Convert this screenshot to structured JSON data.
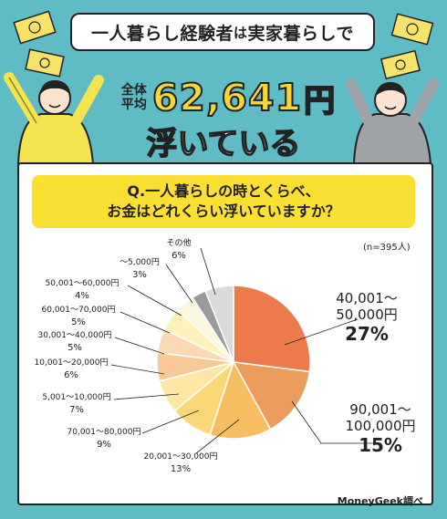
{
  "header": {
    "title_main": "一人暮らし経験者",
    "title_wa": "は",
    "title_rest": "実家暮らしで",
    "avg_label_1": "全体",
    "avg_label_2": "平均",
    "avg_number": "62,641",
    "avg_unit": "円",
    "float_text": "浮いている"
  },
  "question": {
    "line1": "Q.一人暮らしの時とくらべ、",
    "line2": "お金はどれくらい浮いていますか？"
  },
  "sample": "(n=395人)",
  "credit": "MoneyGeek調べ",
  "chart_data": {
    "type": "pie",
    "categories": [
      "40,001～50,000円",
      "90,001～100,000円",
      "20,001～30,000円",
      "70,001～80,000円",
      "5,001～10,000円",
      "10,001～20,000円",
      "30,001～40,000円",
      "60,001～70,000円",
      "50,001～60,000円",
      "～5,000円",
      "その他"
    ],
    "values": [
      27,
      15,
      13,
      9,
      7,
      6,
      5,
      5,
      4,
      3,
      6
    ],
    "percent_labels": [
      "27%",
      "15%",
      "13%",
      "9%",
      "7%",
      "6%",
      "5%",
      "5%",
      "4%",
      "3%",
      "6%"
    ],
    "colors": [
      "#ec7a4b",
      "#eb9b5c",
      "#f6bd61",
      "#fbd877",
      "#fde7a5",
      "#f6c995",
      "#fad9b5",
      "#fdf1bd",
      "#fbf6e0",
      "#9a9a9a",
      "#dadada"
    ],
    "title": "",
    "start_angle_deg": 0,
    "direction": "clockwise"
  }
}
